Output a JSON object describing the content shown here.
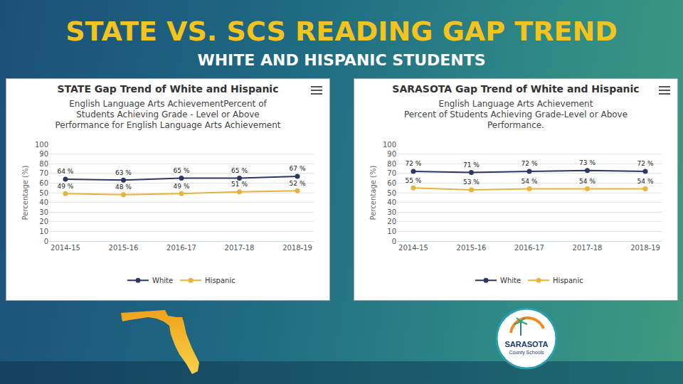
{
  "slide": {
    "title": "STATE VS. SCS READING GAP TREND",
    "subtitle": "WHITE AND HISPANIC STUDENTS",
    "logo_text": [
      "SARASOTA",
      "County Schools"
    ]
  },
  "chart_data": [
    {
      "type": "line",
      "title": "STATE Gap Trend of White and Hispanic",
      "subtitle": [
        "English Language Arts AchievementPercent of",
        "Students Achieving Grade - Level or Above",
        "Performance for English Language Arts Achievement"
      ],
      "y_label": "Percentage (%)",
      "categories": [
        "2014-15",
        "2015-16",
        "2016-17",
        "2017-18",
        "2018-19"
      ],
      "series": [
        {
          "name": "White",
          "color": "#2e3763",
          "values": [
            64,
            63,
            65,
            65,
            67
          ],
          "value_labels": [
            "64 %",
            "63 %",
            "65 %",
            "65 %",
            "67 %"
          ]
        },
        {
          "name": "Hispanic",
          "color": "#e6b43c",
          "values": [
            49,
            48,
            49,
            51,
            52
          ],
          "value_labels": [
            "49 %",
            "48 %",
            "49 %",
            "51 %",
            "52 %"
          ]
        }
      ],
      "ylim": [
        0,
        100
      ],
      "yticks": [
        0,
        10,
        20,
        30,
        40,
        50,
        60,
        70,
        80,
        90,
        100
      ],
      "grid": true,
      "legend": "bottom",
      "data_labels": true,
      "marker": "circle"
    },
    {
      "type": "line",
      "title": "SARASOTA Gap Trend of White and Hispanic",
      "subtitle": [
        "English Language Arts Achievement",
        "Percent of Students Achieving Grade-Level or Above",
        "Performance."
      ],
      "y_label": "Percentage (%)",
      "categories": [
        "2014-15",
        "2015-16",
        "2016-17",
        "2017-18",
        "2018-19"
      ],
      "series": [
        {
          "name": "White",
          "color": "#2e3763",
          "values": [
            72,
            71,
            72,
            73,
            72
          ],
          "value_labels": [
            "72 %",
            "71 %",
            "72 %",
            "73 %",
            "72 %"
          ]
        },
        {
          "name": "Hispanic",
          "color": "#e6b43c",
          "values": [
            55,
            53,
            54,
            54,
            54
          ],
          "value_labels": [
            "55 %",
            "53 %",
            "54 %",
            "54 %",
            "54 %"
          ]
        }
      ],
      "ylim": [
        0,
        100
      ],
      "yticks": [
        0,
        10,
        20,
        30,
        40,
        50,
        60,
        70,
        80,
        90,
        100
      ],
      "grid": true,
      "legend": "bottom",
      "data_labels": true,
      "marker": "circle"
    }
  ]
}
